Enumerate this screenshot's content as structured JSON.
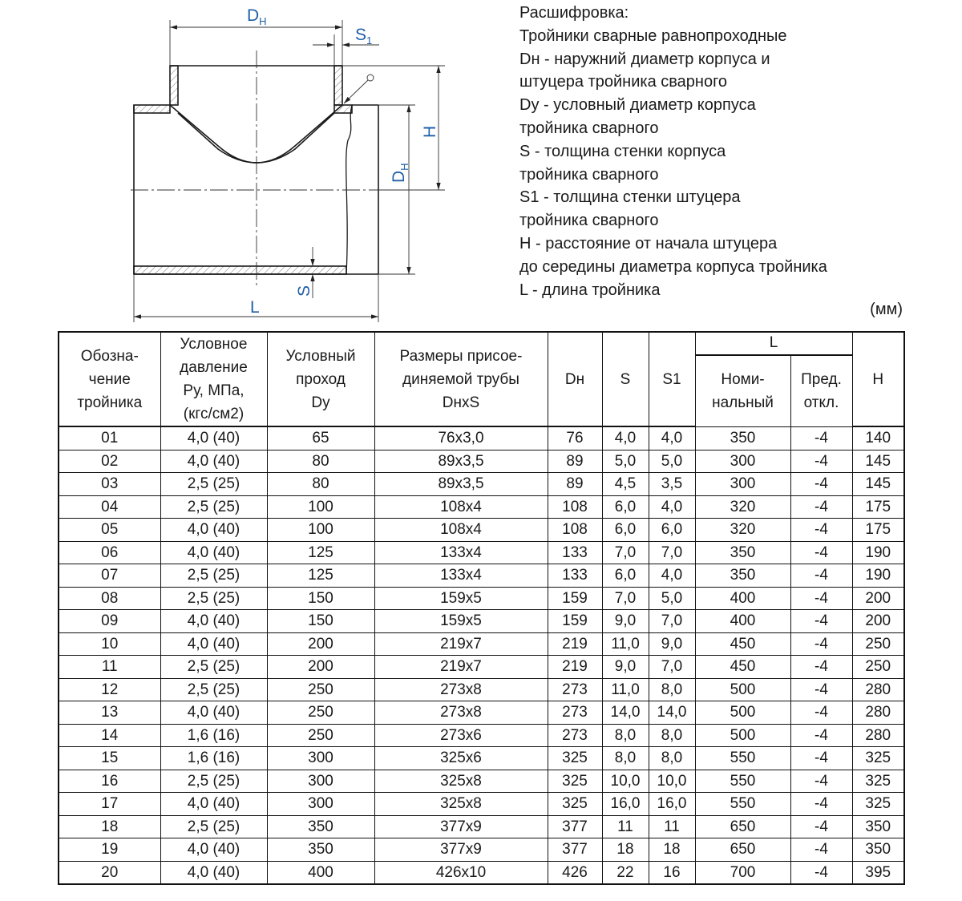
{
  "diagram": {
    "labels": {
      "dn_top": "DН",
      "s1": "S1",
      "h": "H",
      "dn_side": "DН",
      "s": "S",
      "l": "L"
    },
    "line_color": "#1a1a1a",
    "label_color": "#1f5fa8"
  },
  "legend": {
    "lines": [
      "Расшифровка:",
      "Тройники сварные равнопроходные",
      "Dн - наружний диаметр корпуса и",
      "штуцера тройника сварного",
      "Dу - условный диаметр корпуса",
      "тройника сварного",
      "S - толщина стенки корпуса",
      "тройника сварного",
      "S1 - толщина стенки штуцера",
      "тройника сварного",
      "H - расстояние от начала штуцера",
      "до середины диаметра корпуса тройника",
      "L - длина тройника"
    ],
    "units": "(мм)"
  },
  "table": {
    "headers": {
      "designation": "Обозна-\nчение\nтройника",
      "pressure": "Условное\nдавление\nРу, МПа,\n(кгс/см2)",
      "passage": "Условный\nпроход\nDу",
      "pipe": "Размеры присое-\nдиняемой трубы\nDнxS",
      "dn": "Dн",
      "s": "S",
      "s1": "S1",
      "l": "L",
      "l_nominal": "Номи-\nнальный",
      "l_tolerance": "Пред.\nоткл.",
      "h": "H"
    },
    "rows": [
      [
        "01",
        "4,0 (40)",
        "65",
        "76x3,0",
        "76",
        "4,0",
        "4,0",
        "350",
        "-4",
        "140"
      ],
      [
        "02",
        "4,0 (40)",
        "80",
        "89x3,5",
        "89",
        "5,0",
        "5,0",
        "300",
        "-4",
        "145"
      ],
      [
        "03",
        "2,5 (25)",
        "80",
        "89x3,5",
        "89",
        "4,5",
        "3,5",
        "300",
        "-4",
        "145"
      ],
      [
        "04",
        "2,5 (25)",
        "100",
        "108x4",
        "108",
        "6,0",
        "4,0",
        "320",
        "-4",
        "175"
      ],
      [
        "05",
        "4,0 (40)",
        "100",
        "108x4",
        "108",
        "6,0",
        "6,0",
        "320",
        "-4",
        "175"
      ],
      [
        "06",
        "4,0 (40)",
        "125",
        "133x4",
        "133",
        "7,0",
        "7,0",
        "350",
        "-4",
        "190"
      ],
      [
        "07",
        "2,5 (25)",
        "125",
        "133x4",
        "133",
        "6,0",
        "4,0",
        "350",
        "-4",
        "190"
      ],
      [
        "08",
        "2,5 (25)",
        "150",
        "159x5",
        "159",
        "7,0",
        "5,0",
        "400",
        "-4",
        "200"
      ],
      [
        "09",
        "4,0 (40)",
        "150",
        "159x5",
        "159",
        "9,0",
        "7,0",
        "400",
        "-4",
        "200"
      ],
      [
        "10",
        "4,0 (40)",
        "200",
        "219x7",
        "219",
        "11,0",
        "9,0",
        "450",
        "-4",
        "250"
      ],
      [
        "11",
        "2,5 (25)",
        "200",
        "219x7",
        "219",
        "9,0",
        "7,0",
        "450",
        "-4",
        "250"
      ],
      [
        "12",
        "2,5 (25)",
        "250",
        "273x8",
        "273",
        "11,0",
        "8,0",
        "500",
        "-4",
        "280"
      ],
      [
        "13",
        "4,0 (40)",
        "250",
        "273x8",
        "273",
        "14,0",
        "14,0",
        "500",
        "-4",
        "280"
      ],
      [
        "14",
        "1,6 (16)",
        "250",
        "273x6",
        "273",
        "8,0",
        "8,0",
        "500",
        "-4",
        "280"
      ],
      [
        "15",
        "1,6 (16)",
        "300",
        "325x6",
        "325",
        "8,0",
        "8,0",
        "550",
        "-4",
        "325"
      ],
      [
        "16",
        "2,5 (25)",
        "300",
        "325x8",
        "325",
        "10,0",
        "10,0",
        "550",
        "-4",
        "325"
      ],
      [
        "17",
        "4,0 (40)",
        "300",
        "325x8",
        "325",
        "16,0",
        "16,0",
        "550",
        "-4",
        "325"
      ],
      [
        "18",
        "2,5 (25)",
        "350",
        "377x9",
        "377",
        "11",
        "11",
        "650",
        "-4",
        "350"
      ],
      [
        "19",
        "4,0 (40)",
        "350",
        "377x9",
        "377",
        "18",
        "18",
        "650",
        "-4",
        "350"
      ],
      [
        "20",
        "4,0 (40)",
        "400",
        "426x10",
        "426",
        "22",
        "16",
        "700",
        "-4",
        "395"
      ]
    ]
  }
}
